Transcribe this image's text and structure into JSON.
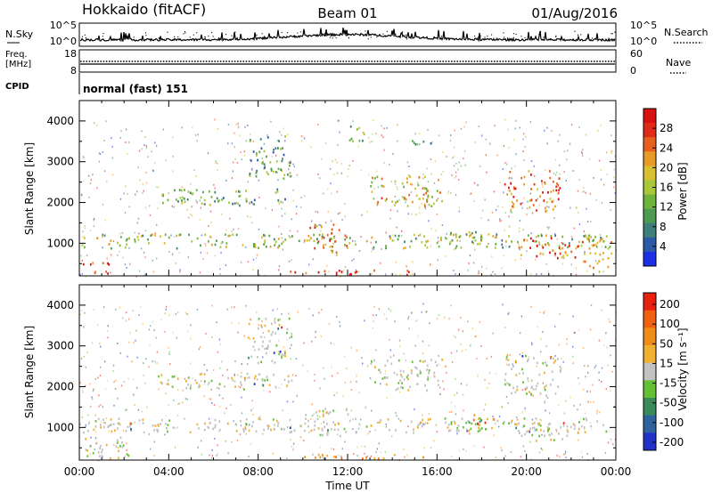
{
  "header": {
    "station": "Hokkaido (fitACF)",
    "beam": "Beam 01",
    "date": "01/Aug/2016"
  },
  "strip": {
    "nsky_label": "N.Sky",
    "nsky_ticks": [
      "10^5",
      "10^0"
    ],
    "nsearch_label": "N.Search",
    "nsearch_ticks": [
      "10^5",
      "10^0"
    ],
    "freq_label": "Freq.",
    "freq_unit": "[MHz]",
    "freq_ticks": [
      "18",
      "8"
    ],
    "nave_label": "Nave",
    "nave_ticks": [
      "60",
      "0"
    ],
    "cpid_label": "CPID",
    "cpid_text": "normal (fast) 151"
  },
  "chart_data": [
    {
      "type": "heatmap",
      "name": "power",
      "ylabel": "Slant Range [km]",
      "yticks": [
        "1000",
        "2000",
        "3000",
        "4000"
      ],
      "ylim": [
        200,
        4500
      ],
      "xlim_hours": [
        0,
        24
      ],
      "colorbar": {
        "label": "Power [dB]",
        "ticks": [
          "4",
          "8",
          "12",
          "16",
          "20",
          "24",
          "28"
        ],
        "colors": [
          "#1c2ee6",
          "#2c5aa8",
          "#3f7f7a",
          "#4f9a52",
          "#6fb43a",
          "#a8c83a",
          "#d8c030",
          "#e89a28",
          "#e86020",
          "#e02a18",
          "#d81010"
        ]
      },
      "regions": [
        {
          "t": [
            0.0,
            23.8
          ],
          "r": [
            900,
            1250
          ],
          "level": 0.45
        },
        {
          "t": [
            0.0,
            1.3
          ],
          "r": [
            250,
            550
          ],
          "level": 0.9
        },
        {
          "t": [
            10.0,
            12.0
          ],
          "r": [
            800,
            1500
          ],
          "level": 0.75
        },
        {
          "t": [
            9.0,
            15.5
          ],
          "r": [
            250,
            360
          ],
          "level": 0.85
        },
        {
          "t": [
            13.0,
            16.2
          ],
          "r": [
            1900,
            2700
          ],
          "level": 0.6
        },
        {
          "t": [
            3.5,
            9.5
          ],
          "r": [
            1950,
            2350
          ],
          "level": 0.35
        },
        {
          "t": [
            19.0,
            21.5
          ],
          "r": [
            1800,
            2800
          ],
          "level": 0.75
        },
        {
          "t": [
            19.5,
            22.5
          ],
          "r": [
            650,
            1150
          ],
          "level": 0.8
        },
        {
          "t": [
            22.5,
            23.8
          ],
          "r": [
            300,
            1200
          ],
          "level": 0.6
        },
        {
          "t": [
            7.5,
            9.5
          ],
          "r": [
            2600,
            3700
          ],
          "level": 0.35
        },
        {
          "t": [
            12.0,
            13.0
          ],
          "r": [
            3500,
            3900
          ],
          "level": 0.4
        },
        {
          "t": [
            14.7,
            15.7
          ],
          "r": [
            3450,
            3700
          ],
          "level": 0.35
        },
        {
          "t": [
            16.5,
            18.0
          ],
          "r": [
            1000,
            1300
          ],
          "level": 0.4
        }
      ]
    },
    {
      "type": "heatmap",
      "name": "velocity",
      "ylabel": "Slant Range [km]",
      "yticks": [
        "1000",
        "2000",
        "3000",
        "4000"
      ],
      "ylim": [
        200,
        4500
      ],
      "xlim_hours": [
        0,
        24
      ],
      "xticks": [
        "00:00",
        "04:00",
        "08:00",
        "12:00",
        "16:00",
        "20:00",
        "00:00"
      ],
      "xlabel": "Time UT",
      "colorbar": {
        "label": "Velocity [m s⁻¹]",
        "ticks": [
          "200",
          "100",
          "50",
          "15",
          "-15",
          "-50",
          "-100",
          "-200"
        ],
        "colors": [
          "#2232c8",
          "#2f63a0",
          "#3a8a5a",
          "#66c036",
          "#c2c2c2",
          "#f0b030",
          "#f08c18",
          "#f06010",
          "#e82010"
        ]
      },
      "regions": [
        {
          "t": [
            0.0,
            23.8
          ],
          "r": [
            900,
            1250
          ],
          "v": "grey"
        },
        {
          "t": [
            0.0,
            2.2
          ],
          "r": [
            250,
            800
          ],
          "v": "grey"
        },
        {
          "t": [
            10.0,
            12.0
          ],
          "r": [
            800,
            1500
          ],
          "v": "grey"
        },
        {
          "t": [
            9.5,
            15.5
          ],
          "r": [
            250,
            360
          ],
          "v": "orange"
        },
        {
          "t": [
            13.0,
            16.2
          ],
          "r": [
            1900,
            2700
          ],
          "v": "grey"
        },
        {
          "t": [
            3.5,
            9.5
          ],
          "r": [
            1950,
            2350
          ],
          "v": "grey"
        },
        {
          "t": [
            19.0,
            21.5
          ],
          "r": [
            1800,
            2800
          ],
          "v": "grey"
        },
        {
          "t": [
            19.5,
            22.5
          ],
          "r": [
            650,
            1150
          ],
          "v": "grey"
        },
        {
          "t": [
            17.5,
            18.5
          ],
          "r": [
            1150,
            1400
          ],
          "v": "orange"
        },
        {
          "t": [
            7.5,
            9.5
          ],
          "r": [
            2600,
            3700
          ],
          "v": "grey"
        },
        {
          "t": [
            16.5,
            18.0
          ],
          "r": [
            1000,
            1300
          ],
          "v": "green"
        }
      ]
    }
  ]
}
